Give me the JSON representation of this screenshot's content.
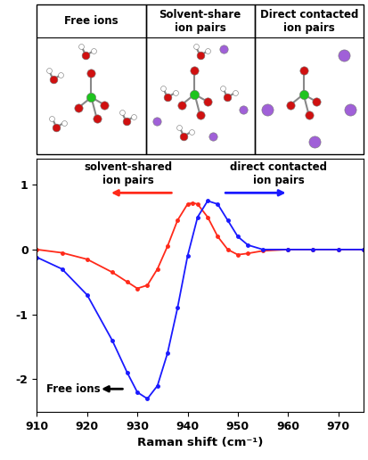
{
  "chart_data": {
    "type": "line",
    "panels": [
      {
        "title": "Free ions"
      },
      {
        "title": "Solvent-share\nion pairs"
      },
      {
        "title": "Direct contacted\nion pairs"
      }
    ],
    "x_label": "Raman shift (cm⁻¹)",
    "xlim": [
      910,
      975
    ],
    "xticks": [
      910,
      920,
      930,
      940,
      950,
      960,
      970
    ],
    "ylim": [
      -2.5,
      1.4
    ],
    "yticks": [
      -2,
      -1,
      0,
      1
    ],
    "grid": false,
    "series": [
      {
        "color": "#ff2a1a",
        "marker": "o",
        "line_style": "solid",
        "x": [
          910,
          915,
          920,
          925,
          928,
          930,
          932,
          934,
          936,
          938,
          940,
          941,
          942,
          944,
          946,
          948,
          950,
          952,
          955,
          960,
          965,
          970,
          975
        ],
        "values": [
          0.0,
          -0.05,
          -0.15,
          -0.35,
          -0.5,
          -0.6,
          -0.55,
          -0.3,
          0.05,
          0.45,
          0.7,
          0.72,
          0.7,
          0.5,
          0.2,
          0.0,
          -0.08,
          -0.06,
          -0.02,
          0.0,
          0.0,
          0.0,
          0.0
        ]
      },
      {
        "color": "#1a1aff",
        "marker": "o",
        "line_style": "solid",
        "x": [
          910,
          915,
          920,
          925,
          928,
          930,
          932,
          934,
          936,
          938,
          940,
          942,
          944,
          946,
          948,
          950,
          952,
          955,
          960,
          965,
          970,
          975
        ],
        "values": [
          -0.12,
          -0.3,
          -0.7,
          -1.4,
          -1.9,
          -2.2,
          -2.3,
          -2.1,
          -1.6,
          -0.9,
          -0.1,
          0.5,
          0.75,
          0.7,
          0.45,
          0.2,
          0.07,
          0.0,
          0.0,
          0.0,
          0.0,
          0.0
        ]
      }
    ],
    "annotations": [
      {
        "text": "solvent-shared\nion pairs",
        "color": "#ff2a1a"
      },
      {
        "text": "direct contacted\nion pairs",
        "color": "#1a1aff"
      },
      {
        "text": "Free ions",
        "color": "#000000"
      }
    ]
  }
}
